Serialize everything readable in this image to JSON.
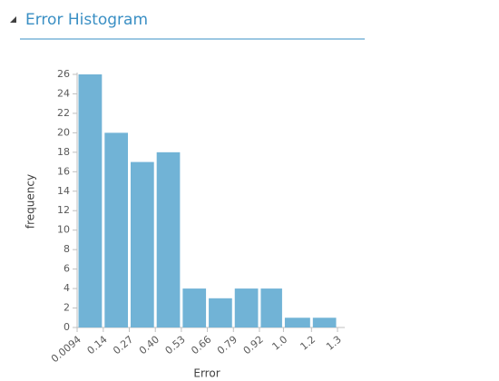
{
  "chart_data": {
    "type": "histogram",
    "title": "Error Histogram",
    "xlabel": "Error",
    "ylabel": "frequency",
    "bins": [
      0.0094,
      0.14,
      0.27,
      0.4,
      0.53,
      0.66,
      0.79,
      0.92,
      1.04,
      1.18,
      1.31
    ],
    "values": [
      26,
      20,
      17,
      18,
      4,
      3,
      4,
      4,
      1,
      1
    ],
    "color": "#71b3d6",
    "xlim": [
      0.0094,
      1.31
    ],
    "xticks": [
      0.0094,
      0.14,
      0.27,
      {
        "value": 0.4,
        "label": "0.40"
      },
      0.53,
      0.66,
      0.79,
      0.92,
      {
        "value": 1.04,
        "label": "1.0"
      },
      {
        "value": 1.18,
        "label": "1.2"
      },
      {
        "value": 1.31,
        "label": "1.3"
      }
    ],
    "ylim": [
      0,
      26
    ],
    "yticks": [
      0,
      2,
      4,
      6,
      8,
      10,
      12,
      14,
      16,
      18,
      20,
      22,
      24,
      26
    ]
  }
}
